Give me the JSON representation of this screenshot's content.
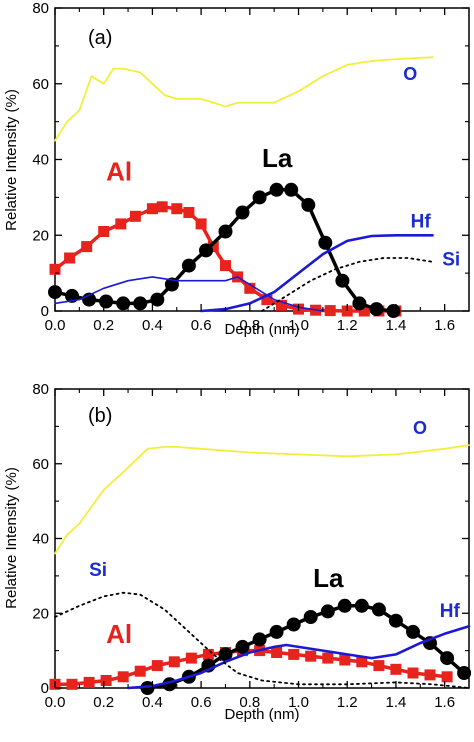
{
  "colors": {
    "O": "#f2ef3c",
    "Al": "#e8231e",
    "La": "#000000",
    "Hf": "#1a1ad6",
    "Si": "#000000",
    "HfLabel": "#1a2ccf",
    "OLabel": "#1a2ccf",
    "SiLabel": "#1a2ccf"
  },
  "chart_data": [
    {
      "type": "line",
      "panel_label": "(a)",
      "xlabel": "Depth (nm)",
      "ylabel": "Relative Intensity (%)",
      "xlim": [
        0.0,
        1.7
      ],
      "ylim": [
        0,
        80
      ],
      "xticks": [
        "0.0",
        "0.2",
        "0.4",
        "0.6",
        "0.8",
        "1.0",
        "1.2",
        "1.4",
        "1.6"
      ],
      "yticks": [
        "0",
        "20",
        "40",
        "60",
        "80"
      ],
      "series": [
        {
          "name": "O",
          "style": "line",
          "x": [
            0.0,
            0.05,
            0.1,
            0.15,
            0.2,
            0.24,
            0.28,
            0.35,
            0.4,
            0.45,
            0.5,
            0.6,
            0.65,
            0.7,
            0.75,
            0.8,
            0.9,
            1.0,
            1.05,
            1.1,
            1.2,
            1.3,
            1.4,
            1.55
          ],
          "y": [
            45,
            50,
            53,
            62,
            60,
            64,
            64,
            63,
            60,
            57,
            56,
            56,
            55,
            54,
            55,
            55,
            55,
            58,
            60,
            62,
            65,
            66,
            66.5,
            67
          ]
        },
        {
          "name": "Al",
          "style": "squares",
          "x": [
            0.0,
            0.06,
            0.13,
            0.2,
            0.27,
            0.33,
            0.4,
            0.44,
            0.5,
            0.55,
            0.6,
            0.65,
            0.7,
            0.75,
            0.8,
            0.87,
            0.93,
            1.0,
            1.07,
            1.13,
            1.2,
            1.27,
            1.33,
            1.4
          ],
          "y": [
            11,
            14,
            17,
            21,
            23,
            25,
            27,
            27.5,
            27,
            26,
            23,
            17,
            12,
            9,
            6,
            3,
            1.5,
            0.5,
            0.2,
            0.1,
            0,
            0,
            0,
            0
          ]
        },
        {
          "name": "La",
          "style": "circles",
          "x": [
            0.0,
            0.07,
            0.14,
            0.21,
            0.28,
            0.35,
            0.42,
            0.48,
            0.55,
            0.62,
            0.7,
            0.77,
            0.84,
            0.91,
            0.97,
            1.04,
            1.11,
            1.18,
            1.25,
            1.32,
            1.39
          ],
          "y": [
            5,
            4,
            3,
            2.5,
            2,
            2,
            3,
            7,
            12,
            16,
            21,
            26,
            30,
            32,
            32,
            28,
            18,
            8,
            2,
            0.5,
            0
          ]
        },
        {
          "name": "Hf",
          "style": "thick-line",
          "x": [
            0.6,
            0.7,
            0.8,
            0.9,
            1.0,
            1.1,
            1.2,
            1.3,
            1.4,
            1.5,
            1.55
          ],
          "y": [
            0,
            0.5,
            2,
            5,
            10,
            15,
            18.5,
            19.8,
            20,
            20,
            20
          ]
        },
        {
          "name": "Hf (thin)",
          "style": "thin-line",
          "x": [
            0.0,
            0.1,
            0.2,
            0.3,
            0.4,
            0.5,
            0.6,
            0.7,
            0.75,
            0.8,
            0.9,
            1.0,
            1.1
          ],
          "y": [
            2,
            3,
            6,
            8,
            9,
            8,
            8,
            8,
            9,
            7,
            3,
            1,
            0
          ]
        },
        {
          "name": "Si",
          "style": "dotted",
          "x": [
            0.85,
            0.95,
            1.05,
            1.15,
            1.25,
            1.35,
            1.45,
            1.55
          ],
          "y": [
            0,
            4,
            8,
            11,
            13,
            14,
            14,
            13
          ]
        }
      ],
      "annotations": [
        {
          "text": "O",
          "x": 1.43,
          "y": 61,
          "colorKey": "OLabel",
          "size": 18
        },
        {
          "text": "Al",
          "x": 0.21,
          "y": 34.5,
          "colorKey": "Al",
          "size": 26
        },
        {
          "text": "La",
          "x": 0.85,
          "y": 38,
          "colorKey": "La",
          "size": 26
        },
        {
          "text": "Hf",
          "x": 1.46,
          "y": 22,
          "colorKey": "HfLabel",
          "size": 19
        },
        {
          "text": "Si",
          "x": 1.59,
          "y": 12,
          "colorKey": "SiLabel",
          "size": 19
        }
      ]
    },
    {
      "type": "line",
      "panel_label": "(b)",
      "xlabel": "Depth (nm)",
      "ylabel": "Relative Intensity (%)",
      "xlim": [
        0.0,
        1.7
      ],
      "ylim": [
        0,
        80
      ],
      "xticks": [
        "0.0",
        "0.2",
        "0.4",
        "0.6",
        "0.8",
        "1.0",
        "1.2",
        "1.4",
        "1.6"
      ],
      "yticks": [
        "0",
        "20",
        "40",
        "60",
        "80"
      ],
      "series": [
        {
          "name": "O",
          "style": "line",
          "x": [
            0.0,
            0.05,
            0.1,
            0.2,
            0.3,
            0.38,
            0.45,
            0.5,
            0.6,
            0.8,
            1.0,
            1.2,
            1.4,
            1.6,
            1.7
          ],
          "y": [
            36,
            41,
            44,
            53,
            59,
            64,
            64.5,
            64.5,
            64,
            63,
            62.5,
            62,
            62.5,
            64,
            65
          ]
        },
        {
          "name": "Al",
          "style": "squares",
          "x": [
            0.0,
            0.07,
            0.14,
            0.21,
            0.28,
            0.35,
            0.42,
            0.49,
            0.56,
            0.63,
            0.7,
            0.77,
            0.84,
            0.91,
            0.98,
            1.05,
            1.12,
            1.19,
            1.26,
            1.33,
            1.4,
            1.47,
            1.54,
            1.61
          ],
          "y": [
            1,
            1,
            1.5,
            2,
            3,
            4.5,
            6,
            7,
            8,
            9,
            9.5,
            10,
            10,
            9.5,
            9,
            8.5,
            8,
            7.5,
            7,
            6,
            5,
            4,
            3.5,
            3
          ]
        },
        {
          "name": "La",
          "style": "circles",
          "x": [
            0.38,
            0.47,
            0.55,
            0.63,
            0.7,
            0.77,
            0.84,
            0.91,
            0.98,
            1.05,
            1.12,
            1.19,
            1.26,
            1.33,
            1.4,
            1.47,
            1.54,
            1.61,
            1.68
          ],
          "y": [
            0,
            1,
            3,
            6,
            9,
            11,
            13,
            15,
            17,
            19,
            20.5,
            22,
            22,
            21,
            18,
            15,
            12,
            8,
            4
          ]
        },
        {
          "name": "Hf",
          "style": "thick-line",
          "x": [
            0.3,
            0.4,
            0.5,
            0.6,
            0.7,
            0.8,
            0.9,
            0.95,
            1.0,
            1.1,
            1.2,
            1.3,
            1.4,
            1.5,
            1.6,
            1.7
          ],
          "y": [
            0,
            0.5,
            2,
            4,
            7,
            9.5,
            11,
            11.5,
            11,
            10,
            9,
            8,
            9,
            12,
            14.5,
            16.5
          ]
        },
        {
          "name": "Si",
          "style": "dotted",
          "x": [
            0.0,
            0.1,
            0.2,
            0.28,
            0.35,
            0.45,
            0.55,
            0.65,
            0.75,
            0.85,
            1.0,
            1.2,
            1.4,
            1.55,
            1.7
          ],
          "y": [
            19,
            22,
            24.5,
            25.5,
            25,
            21,
            15,
            9,
            4,
            2,
            1,
            1,
            1.5,
            1,
            0
          ]
        }
      ],
      "annotations": [
        {
          "text": "O",
          "x": 1.47,
          "y": 68,
          "colorKey": "OLabel",
          "size": 18
        },
        {
          "text": "Si",
          "x": 0.14,
          "y": 30,
          "colorKey": "SiLabel",
          "size": 19
        },
        {
          "text": "Al",
          "x": 0.21,
          "y": 12,
          "colorKey": "Al",
          "size": 26
        },
        {
          "text": "La",
          "x": 1.06,
          "y": 27,
          "colorKey": "La",
          "size": 26
        },
        {
          "text": "Hf",
          "x": 1.58,
          "y": 19,
          "colorKey": "HfLabel",
          "size": 19
        }
      ]
    }
  ]
}
